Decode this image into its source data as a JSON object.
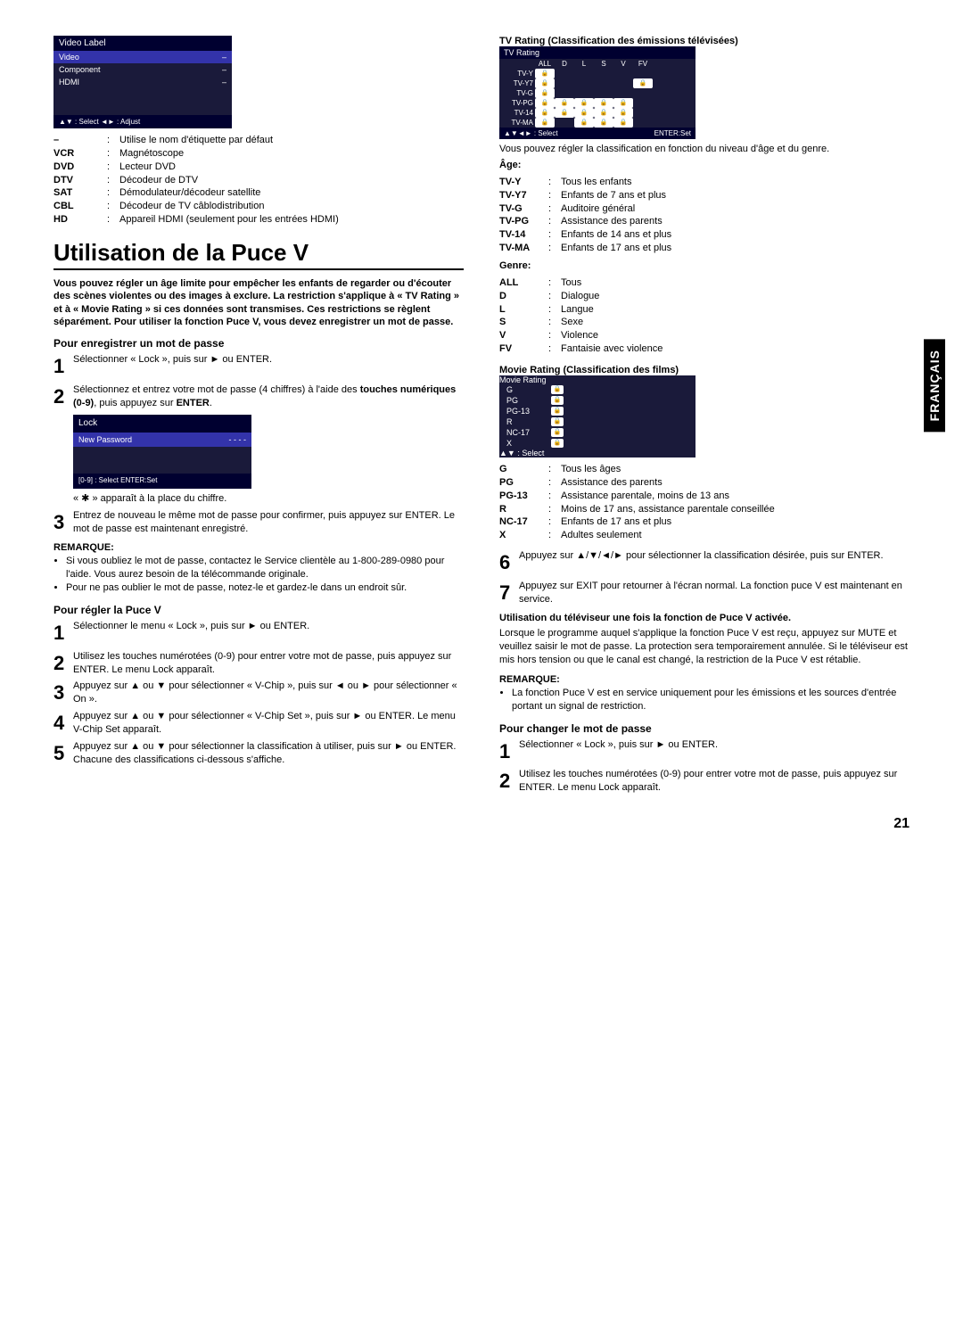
{
  "left": {
    "videoLabelMenu": {
      "title": "Video Label",
      "rows": [
        {
          "k": "Video",
          "v": "–",
          "sel": true
        },
        {
          "k": "Component",
          "v": "–",
          "sel": false
        },
        {
          "k": "HDMI",
          "v": "–",
          "sel": false
        }
      ],
      "footer": "▲▼ : Select   ◄► : Adjust"
    },
    "defs": [
      {
        "k": "–",
        "v": "Utilise le nom d'étiquette par défaut"
      },
      {
        "k": "VCR",
        "v": "Magnétoscope"
      },
      {
        "k": "DVD",
        "v": "Lecteur DVD"
      },
      {
        "k": "DTV",
        "v": "Décodeur de DTV"
      },
      {
        "k": "SAT",
        "v": "Démodulateur/décodeur satellite"
      },
      {
        "k": "CBL",
        "v": "Décodeur de TV câblodistribution"
      },
      {
        "k": "HD",
        "v": "Appareil HDMI (seulement pour les entrées HDMI)"
      }
    ],
    "sectionTitle": "Utilisation de la Puce V",
    "intro": "Vous pouvez régler un âge limite pour empêcher les enfants de regarder ou d'écouter des scènes violentes ou des images à exclure. La restriction s'applique à « TV Rating » et à « Movie Rating » si ces données sont transmises. Ces restrictions se règlent séparément. Pour utiliser la fonction Puce V, vous devez enregistrer un mot de passe.",
    "registerHeading": "Pour enregistrer un mot de passe",
    "registerSteps": {
      "s1": "Sélectionner « Lock », puis sur ► ou ENTER.",
      "s2a": "Sélectionnez et entrez votre mot de passe (4 chiffres) à l'aide des ",
      "s2b": "touches numériques (0-9)",
      "s2c": ", puis appuyez sur ",
      "s2d": "ENTER",
      "s2e": ".",
      "lockMenu": {
        "title": "Lock",
        "row": "New Password",
        "val": "- - - -",
        "footer": "[0-9] : Select          ENTER:Set"
      },
      "starNote": "« ✱ » apparaît à la place du chiffre.",
      "s3": "Entrez de nouveau le même mot de passe pour confirmer, puis appuyez sur ENTER. Le mot de passe est maintenant enregistré."
    },
    "remarque1": {
      "h": "REMARQUE:",
      "items": [
        "Si vous oubliez le mot de passe, contactez le Service clientèle au 1-800-289-0980 pour l'aide. Vous aurez besoin de la télécommande originale.",
        "Pour ne pas oublier le mot de passe, notez-le et gardez-le dans un endroit sûr."
      ]
    },
    "setHeading": "Pour régler la Puce V",
    "setSteps": {
      "s1": "Sélectionner le menu « Lock », puis sur ► ou ENTER.",
      "s2": "Utilisez les touches numérotées (0-9) pour entrer votre mot de passe, puis appuyez sur ENTER. Le menu Lock apparaît.",
      "s3": "Appuyez sur ▲ ou ▼ pour sélectionner « V-Chip », puis sur ◄ ou ► pour sélectionner « On ».",
      "s4": "Appuyez sur ▲ ou ▼ pour sélectionner « V-Chip Set », puis sur ► ou ENTER. Le menu V-Chip Set apparaît.",
      "s5": "Appuyez sur ▲ ou ▼ pour sélectionner la classification à utiliser, puis sur ► ou ENTER. Chacune des classifications ci-dessous s'affiche."
    }
  },
  "right": {
    "tvRatingHeading": "TV Rating (Classification des émissions télévisées)",
    "tvRatingBox": {
      "title": "TV Rating",
      "cols": [
        "",
        "ALL",
        "D",
        "L",
        "S",
        "V",
        "FV"
      ],
      "rows": [
        {
          "label": "TV-Y",
          "cells": [
            "🔒",
            "",
            "",
            "",
            "",
            ""
          ]
        },
        {
          "label": "TV-Y7",
          "cells": [
            "🔒",
            "",
            "",
            "",
            "",
            "🔒"
          ]
        },
        {
          "label": "TV-G",
          "cells": [
            "🔒",
            "",
            "",
            "",
            "",
            ""
          ]
        },
        {
          "label": "TV-PG",
          "cells": [
            "🔒",
            "🔒",
            "🔒",
            "🔒",
            "🔒",
            ""
          ]
        },
        {
          "label": "TV-14",
          "cells": [
            "🔒",
            "🔒",
            "🔒",
            "🔒",
            "🔒",
            ""
          ]
        },
        {
          "label": "TV-MA",
          "cells": [
            "🔒",
            "",
            "🔒",
            "🔒",
            "🔒",
            ""
          ]
        }
      ],
      "footerL": "▲▼◄► : Select",
      "footerR": "ENTER:Set"
    },
    "tvRatingIntro": "Vous pouvez régler la classification en fonction du niveau d'âge et du genre.",
    "ageH": "Âge:",
    "ageDefs": [
      {
        "k": "TV-Y",
        "v": "Tous les enfants"
      },
      {
        "k": "TV-Y7",
        "v": "Enfants de 7 ans et plus"
      },
      {
        "k": "TV-G",
        "v": "Auditoire général"
      },
      {
        "k": "TV-PG",
        "v": "Assistance des parents"
      },
      {
        "k": "TV-14",
        "v": "Enfants de 14 ans et plus"
      },
      {
        "k": "TV-MA",
        "v": "Enfants de 17 ans et plus"
      }
    ],
    "genreH": "Genre:",
    "genreDefs": [
      {
        "k": "ALL",
        "v": "Tous"
      },
      {
        "k": "D",
        "v": "Dialogue"
      },
      {
        "k": "L",
        "v": "Langue"
      },
      {
        "k": "S",
        "v": "Sexe"
      },
      {
        "k": "V",
        "v": "Violence"
      },
      {
        "k": "FV",
        "v": "Fantaisie avec violence"
      }
    ],
    "movieHeading": "Movie Rating (Classification des films)",
    "movieBox": {
      "title": "Movie Rating",
      "rows": [
        {
          "k": "G",
          "v": "🔒"
        },
        {
          "k": "PG",
          "v": "🔒"
        },
        {
          "k": "PG-13",
          "v": "🔒"
        },
        {
          "k": "R",
          "v": "🔒"
        },
        {
          "k": "NC-17",
          "v": "🔒"
        },
        {
          "k": "X",
          "v": "🔒"
        }
      ],
      "footer": "▲▼ : Select"
    },
    "movieDefs": [
      {
        "k": "G",
        "v": "Tous les âges"
      },
      {
        "k": "PG",
        "v": "Assistance des parents"
      },
      {
        "k": "PG-13",
        "v": "Assistance parentale, moins de 13 ans"
      },
      {
        "k": "R",
        "v": "Moins de 17 ans, assistance parentale conseillée"
      },
      {
        "k": "NC-17",
        "v": "Enfants de 17 ans et plus"
      },
      {
        "k": "X",
        "v": "Adultes seulement"
      }
    ],
    "step6": "Appuyez sur ▲/▼/◄/► pour sélectionner la classification désirée, puis sur ENTER.",
    "step7": "Appuyez sur EXIT pour retourner à l'écran normal. La fonction puce V est maintenant en service.",
    "useHeading": "Utilisation du téléviseur une fois la fonction de Puce V activée.",
    "usePara": "Lorsque le programme auquel s'applique la fonction Puce V est reçu, appuyez sur MUTE et veuillez saisir le mot de passe. La protection sera temporairement annulée. Si le téléviseur est mis hors tension ou que le canal est changé, la restriction de la Puce V est rétablie.",
    "remarque2": {
      "h": "REMARQUE:",
      "items": [
        "La fonction Puce V est en service uniquement pour les émissions et les sources d'entrée portant un signal de restriction."
      ]
    },
    "changeHeading": "Pour changer le mot de passe",
    "changeSteps": {
      "s1": "Sélectionner « Lock », puis sur ► ou ENTER.",
      "s2": "Utilisez les touches numérotées (0-9) pour entrer votre mot de passe, puis appuyez sur ENTER. Le menu Lock apparaît."
    }
  },
  "sideTab": "FRANÇAIS",
  "pageNum": "21"
}
